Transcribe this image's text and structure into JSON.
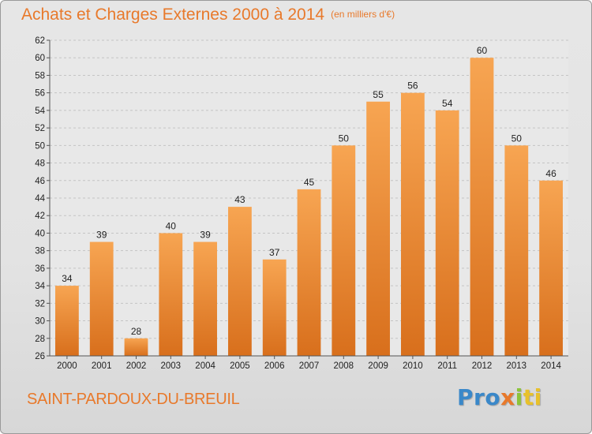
{
  "chart_data": {
    "type": "bar",
    "title": "Achats et Charges Externes 2000 à 2014",
    "subtitle": "(en milliers d'€)",
    "categories": [
      "2000",
      "2001",
      "2002",
      "2003",
      "2004",
      "2005",
      "2006",
      "2007",
      "2008",
      "2009",
      "2010",
      "2011",
      "2012",
      "2013",
      "2014"
    ],
    "values": [
      34,
      39,
      28,
      40,
      39,
      43,
      37,
      45,
      50,
      55,
      56,
      54,
      60,
      50,
      46
    ],
    "ylim": [
      26,
      62
    ],
    "yticks": [
      26,
      28,
      30,
      32,
      34,
      36,
      38,
      40,
      42,
      44,
      46,
      48,
      50,
      52,
      54,
      56,
      58,
      60,
      62
    ],
    "grid": true,
    "bar_color_top": "#f7a552",
    "bar_color_bottom": "#d86f1c"
  },
  "location": "SAINT-PARDOUX-DU-BREUIL",
  "logo": {
    "p1": "Pro",
    "p2": "x",
    "p3": "i",
    "p4": "ti"
  }
}
